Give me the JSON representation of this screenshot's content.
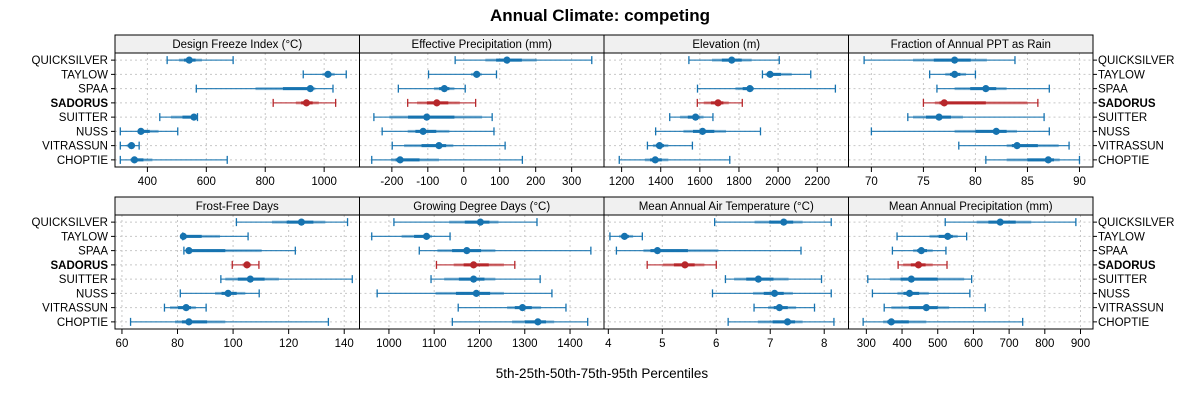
{
  "chart_data": {
    "type": "dotplot-percentiles",
    "title": "Annual Climate: competing",
    "xlabel": "5th-25th-50th-75th-95th Percentiles",
    "legend": "none",
    "grid": true,
    "colors": {
      "default": "#1673b0",
      "highlight": "#b7272b",
      "strip_bg": "#f0f0f0",
      "grid": "#c8c8c8"
    },
    "categories": [
      "QUICKSILVER",
      "TAYLOW",
      "SPAA",
      "SADORUS",
      "SUITTER",
      "NUSS",
      "VITRASSUN",
      "CHOPTIE"
    ],
    "highlight": "SADORUS",
    "stat_order": [
      "p5",
      "p25",
      "p50",
      "p75",
      "p95"
    ],
    "panels": [
      {
        "title": "Design Freeze Index (°C)",
        "xlim": [
          290,
          1120
        ],
        "ticks": [
          400,
          600,
          800,
          1000
        ],
        "tick_labels": [
          "400",
          "600",
          "800",
          "1000"
        ],
        "values": [
          [
            467,
            507,
            542,
            585,
            691
          ],
          [
            929,
            994,
            1013,
            1036,
            1075
          ],
          [
            566,
            767,
            953,
            970,
            1030
          ],
          [
            827,
            904,
            940,
            982,
            1039
          ],
          [
            442,
            480,
            558,
            566,
            570
          ],
          [
            308,
            367,
            378,
            438,
            503
          ],
          [
            308,
            330,
            346,
            355,
            372
          ],
          [
            308,
            342,
            356,
            417,
            671
          ]
        ]
      },
      {
        "title": "Effective Precipitation (mm)",
        "xlim": [
          -290,
          390
        ],
        "ticks": [
          -200,
          -100,
          0,
          100,
          200,
          300
        ],
        "tick_labels": [
          "-200",
          "-100",
          "0",
          "100",
          "200",
          "300"
        ],
        "values": [
          [
            -24,
            60,
            120,
            203,
            356
          ],
          [
            -98,
            20,
            36,
            50,
            91
          ],
          [
            -182,
            -83,
            -54,
            -26,
            4
          ],
          [
            -156,
            -130,
            -75,
            -11,
            33
          ],
          [
            -250,
            -207,
            -103,
            51,
            79
          ],
          [
            -227,
            -156,
            -113,
            -40,
            84
          ],
          [
            -199,
            -166,
            -69,
            -29,
            115
          ],
          [
            -256,
            -202,
            -177,
            -69,
            163
          ]
        ]
      },
      {
        "title": "Elevation (m)",
        "xlim": [
          1110,
          2360
        ],
        "ticks": [
          1200,
          1400,
          1600,
          1800,
          2000,
          2200
        ],
        "tick_labels": [
          "1200",
          "1400",
          "1600",
          "1800",
          "2000",
          "2200"
        ],
        "values": [
          [
            1544,
            1662,
            1763,
            1865,
            2006
          ],
          [
            1920,
            1935,
            1959,
            2070,
            2167
          ],
          [
            1588,
            1782,
            1856,
            1877,
            2293
          ],
          [
            1587,
            1620,
            1693,
            1748,
            1817
          ],
          [
            1446,
            1499,
            1578,
            1619,
            1667
          ],
          [
            1374,
            1516,
            1614,
            1734,
            1910
          ],
          [
            1332,
            1360,
            1394,
            1439,
            1562
          ],
          [
            1188,
            1319,
            1372,
            1439,
            1753
          ]
        ]
      },
      {
        "title": "Fraction of Annual PPT as Rain",
        "xlim": [
          67.8,
          91.3
        ],
        "ticks": [
          70,
          75,
          80,
          85,
          90
        ],
        "tick_labels": [
          "70",
          "75",
          "80",
          "85",
          "90"
        ],
        "values": [
          [
            69.3,
            74.0,
            78.0,
            81.1,
            83.8
          ],
          [
            75.6,
            77.1,
            78.0,
            79.1,
            80.0
          ],
          [
            76.3,
            78.0,
            81.0,
            83.0,
            87.1
          ],
          [
            75.0,
            76.1,
            77.0,
            85.0,
            86.0
          ],
          [
            73.5,
            74.0,
            76.5,
            78.8,
            86.6
          ],
          [
            70.0,
            78.0,
            82.0,
            84.0,
            87.1
          ],
          [
            78.4,
            83.0,
            84.0,
            88.0,
            89.0
          ],
          [
            81.0,
            83.0,
            87.0,
            88.1,
            90.0
          ]
        ]
      },
      {
        "title": "Frost-Free Days",
        "xlim": [
          57.5,
          145.5
        ],
        "ticks": [
          60,
          80,
          100,
          120,
          140
        ],
        "tick_labels": [
          "60",
          "80",
          "100",
          "120",
          "140"
        ],
        "values": [
          [
            101.2,
            114.0,
            124.6,
            133.2,
            141.2
          ],
          [
            81.9,
            82.0,
            82.1,
            95.3,
            105.4
          ],
          [
            82.3,
            83.0,
            84.1,
            110.3,
            122.4
          ],
          [
            99.7,
            103.4,
            105.0,
            106.5,
            109.3
          ],
          [
            95.6,
            97.2,
            106.2,
            116.5,
            142.9
          ],
          [
            81.0,
            93.5,
            98.2,
            104.4,
            109.4
          ],
          [
            75.3,
            77.3,
            83.1,
            86.6,
            90.3
          ],
          [
            63.1,
            79.1,
            84.1,
            97.2,
            134.3
          ]
        ]
      },
      {
        "title": "Growing Degree Days (°C)",
        "xlim": [
          935,
          1475
        ],
        "ticks": [
          1000,
          1100,
          1200,
          1300,
          1400
        ],
        "tick_labels": [
          "1000",
          "1100",
          "1200",
          "1300",
          "1400"
        ],
        "values": [
          [
            1011,
            1133,
            1202,
            1242,
            1327
          ],
          [
            962,
            1028,
            1083,
            1095,
            1135
          ],
          [
            1067,
            1107,
            1172,
            1235,
            1446
          ],
          [
            1105,
            1143,
            1187,
            1254,
            1278
          ],
          [
            1093,
            1122,
            1187,
            1235,
            1334
          ],
          [
            974,
            1103,
            1193,
            1254,
            1360
          ],
          [
            1153,
            1261,
            1295,
            1336,
            1391
          ],
          [
            1140,
            1272,
            1329,
            1365,
            1439
          ]
        ]
      },
      {
        "title": "Mean Annual Air Temperature (°C)",
        "xlim": [
          3.92,
          8.45
        ],
        "ticks": [
          4,
          5,
          6,
          7,
          8
        ],
        "tick_labels": [
          "4",
          "5",
          "6",
          "7",
          "8"
        ],
        "values": [
          [
            5.97,
            6.71,
            7.25,
            7.6,
            8.13
          ],
          [
            4.03,
            4.2,
            4.3,
            4.46,
            4.63
          ],
          [
            4.15,
            4.65,
            4.91,
            6.04,
            7.57
          ],
          [
            4.72,
            5.01,
            5.42,
            5.78,
            6.0
          ],
          [
            6.17,
            6.33,
            6.78,
            7.34,
            7.95
          ],
          [
            5.93,
            6.68,
            7.08,
            7.42,
            8.13
          ],
          [
            6.7,
            6.96,
            7.17,
            7.48,
            7.82
          ],
          [
            6.22,
            6.77,
            7.32,
            7.6,
            8.18
          ]
        ]
      },
      {
        "title": "Mean Annual Precipitation (mm)",
        "xlim": [
          250,
          935
        ],
        "ticks": [
          300,
          400,
          500,
          600,
          700,
          800,
          900
        ],
        "tick_labels": [
          "300",
          "400",
          "500",
          "600",
          "700",
          "800",
          "900"
        ],
        "values": [
          [
            521,
            609,
            675,
            762,
            887
          ],
          [
            386,
            477,
            528,
            556,
            581
          ],
          [
            373,
            431,
            454,
            486,
            523
          ],
          [
            389,
            403,
            446,
            486,
            526
          ],
          [
            304,
            366,
            426,
            574,
            595
          ],
          [
            317,
            387,
            421,
            475,
            590
          ],
          [
            350,
            370,
            468,
            532,
            633
          ],
          [
            291,
            347,
            370,
            468,
            738
          ]
        ]
      }
    ]
  }
}
